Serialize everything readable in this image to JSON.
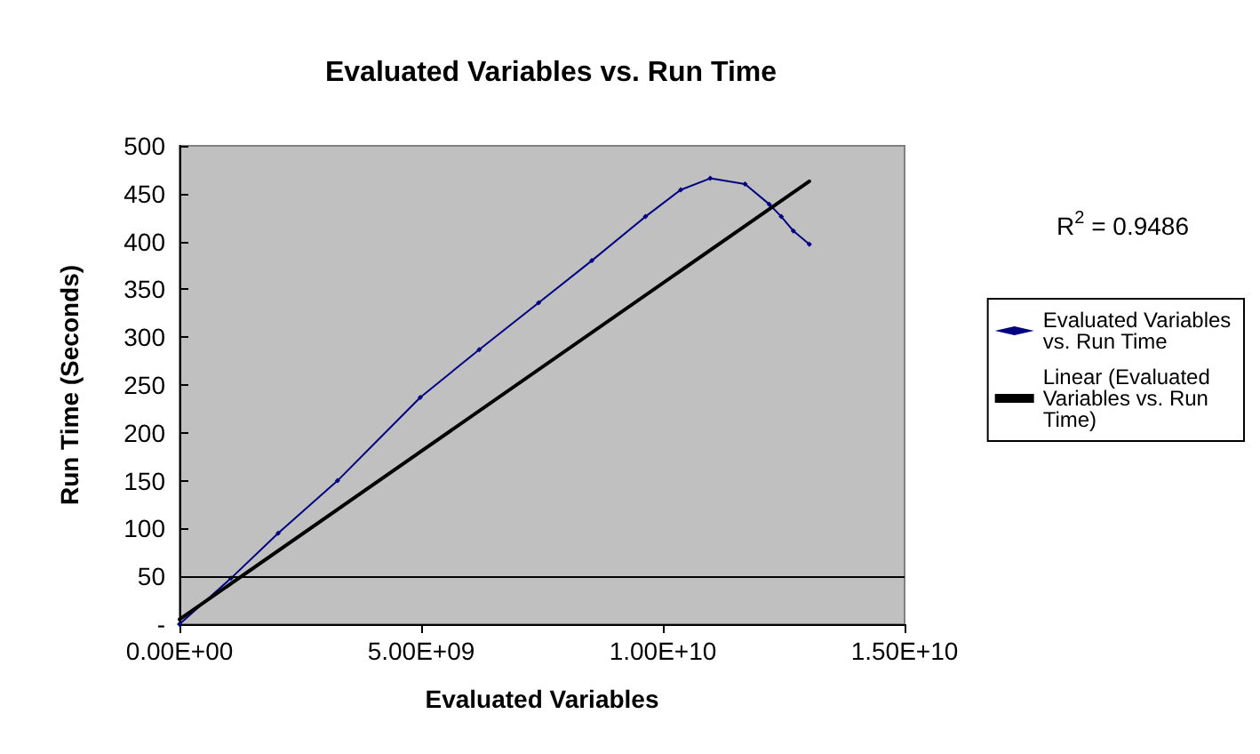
{
  "chart_data": {
    "type": "line",
    "title": "Evaluated Variables vs. Run Time",
    "xlabel": "Evaluated Variables",
    "ylabel": "Run Time (Seconds)",
    "xlim": [
      0,
      15000000000
    ],
    "xticks": [
      {
        "value": 0,
        "label": "0.00E+00"
      },
      {
        "value": 5000000000,
        "label": "5.00E+09"
      },
      {
        "value": 10000000000,
        "label": "1.00E+10"
      },
      {
        "value": 15000000000,
        "label": "1.50E+10"
      }
    ],
    "ylim": [
      0,
      500
    ],
    "yticks": [
      {
        "value": 0,
        "label": "-"
      },
      50,
      100,
      150,
      200,
      250,
      300,
      350,
      400,
      450,
      500
    ],
    "series": [
      {
        "name": "Evaluated Variables vs. Run Time",
        "color": "#000080",
        "marker": "diamond",
        "x": [
          0,
          1065000000,
          2040000000,
          3270000000,
          4980000000,
          6200000000,
          7430000000,
          8530000000,
          9640000000,
          10370000000,
          10980000000,
          11700000000,
          12200000000,
          12450000000,
          12700000000,
          13030000000
        ],
        "values": [
          0,
          48,
          95,
          150,
          237,
          287,
          336,
          380,
          426,
          454,
          466,
          460,
          439,
          426,
          411,
          397
        ]
      },
      {
        "name": "Linear (Evaluated Variables vs. Run Time)",
        "color": "#000000",
        "marker": "none",
        "x": [
          0,
          13030000000
        ],
        "values": [
          5,
          463
        ]
      }
    ],
    "ref_lines": [
      {
        "axis": "y",
        "value": 50,
        "color": "#000000"
      }
    ],
    "annotations": [
      "R$^{2}$ = 0.9486"
    ],
    "grid": false,
    "legend": "right"
  }
}
